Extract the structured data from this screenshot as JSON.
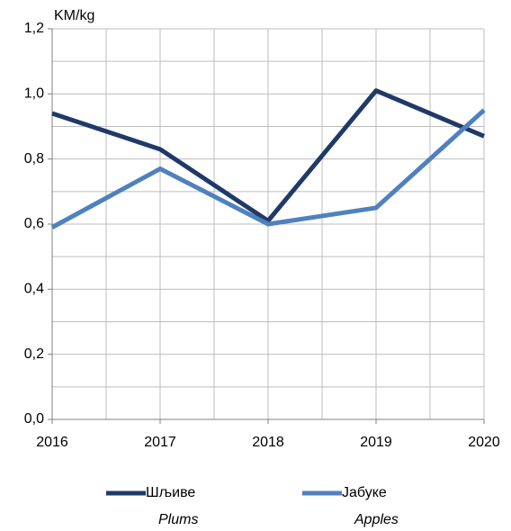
{
  "chart_data": {
    "type": "line",
    "y_unit_label": "KM/kg",
    "x": [
      2016,
      2017,
      2018,
      2019,
      2020
    ],
    "xlim": [
      2016,
      2020
    ],
    "xticks": [
      2016,
      2017,
      2018,
      2019,
      2020
    ],
    "ylim": [
      0,
      1.2
    ],
    "yticks": [
      {
        "value": 0,
        "label": "0,0"
      },
      {
        "value": 0.2,
        "label": "0,2"
      },
      {
        "value": 0.4,
        "label": "0,4"
      },
      {
        "value": 0.6,
        "label": "0,6"
      },
      {
        "value": 0.8,
        "label": "0,8"
      },
      {
        "value": 1.0,
        "label": "1,0"
      },
      {
        "value": 1.2,
        "label": "1,2"
      }
    ],
    "grid": true,
    "legend": "bottom",
    "series": [
      {
        "name": "Шљиве",
        "name_en": "Plums",
        "color": "#1f3a68",
        "values": [
          0.94,
          0.83,
          0.61,
          1.01,
          0.87
        ]
      },
      {
        "name": "Јабуке",
        "name_en": "Apples",
        "color": "#4f81bd",
        "values": [
          0.59,
          0.77,
          0.6,
          0.65,
          0.95
        ]
      }
    ]
  }
}
